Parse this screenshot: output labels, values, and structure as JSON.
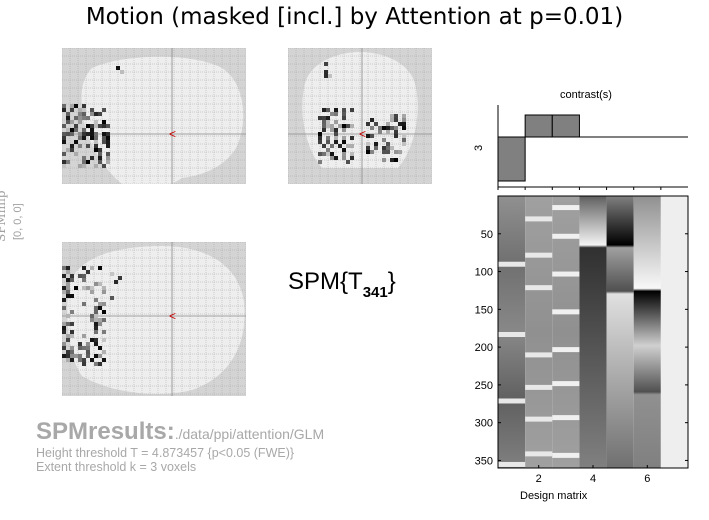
{
  "title": "Motion (masked [incl.] by Attention at p=0.01)",
  "stat_label": {
    "prefix": "SPM{T",
    "sub": "341",
    "suffix": "}"
  },
  "mip_label": {
    "line1": "SPMmip",
    "line2": "[0, 0, 0]"
  },
  "results": {
    "heading": "SPMresults:",
    "path": "./data/ppi/attention/GLM",
    "height_threshold": "Height threshold T = 4.873457  {p<0.05 (FWE)}",
    "extent_threshold": "Extent threshold k = 3 voxels"
  },
  "contrast": {
    "label": "contrast(s)",
    "index": "3",
    "weights": [
      -1,
      1,
      1,
      0,
      0,
      0,
      0
    ]
  },
  "design_matrix": {
    "xlabel": "Design matrix",
    "y_ticks": [
      "50",
      "100",
      "150",
      "200",
      "250",
      "300",
      "350"
    ],
    "x_ticks": [
      "2",
      "4",
      "6"
    ],
    "n_scans": 360,
    "n_columns": 7
  },
  "colors": {
    "cursor": "#cc0000",
    "mip_bg": "#d4d4d4",
    "brain": "#eeeeee",
    "grid": "#a8a8a8",
    "results_text": "#a8a8a8"
  }
}
